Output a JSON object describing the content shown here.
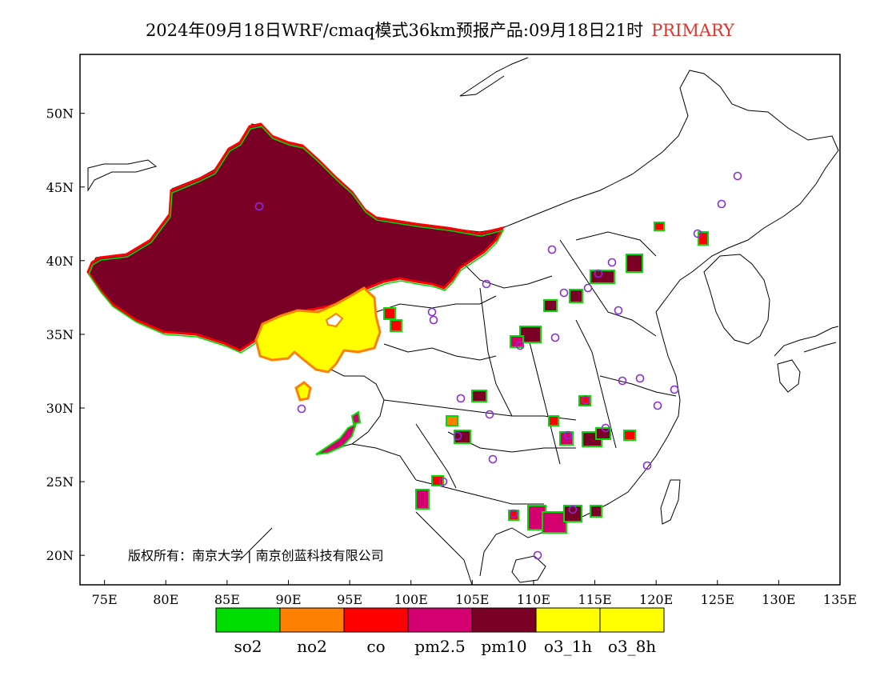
{
  "title": {
    "main": "2024年09月18日WRF/cmaq模式36km预报产品:09月18日21时",
    "tag": "PRIMARY",
    "tag_color": "#e0342b"
  },
  "axes": {
    "lon_ticks": [
      "75E",
      "80E",
      "85E",
      "90E",
      "95E",
      "100E",
      "105E",
      "110E",
      "115E",
      "120E",
      "125E",
      "130E",
      "135E"
    ],
    "lat_ticks": [
      "20N",
      "25N",
      "30N",
      "35N",
      "40N",
      "45N",
      "50N"
    ]
  },
  "legend": {
    "items": [
      {
        "label": "so2",
        "color": "#00dd00"
      },
      {
        "label": "no2",
        "color": "#ff8000"
      },
      {
        "label": "co",
        "color": "#ff0000"
      },
      {
        "label": "pm2.5",
        "color": "#d4006f"
      },
      {
        "label": "pm10",
        "color": "#7a0026"
      },
      {
        "label": "o3_1h",
        "color": "#ffff00"
      },
      {
        "label": "o3_8h",
        "color": "#ffff00"
      }
    ]
  },
  "copyright": "版权所有：南京大学 | 南京创蓝科技有限公司",
  "colors": {
    "pm10": "#7a0026",
    "pm25": "#d4006f",
    "co": "#ff0000",
    "no2": "#ff8000",
    "so2": "#00dd00",
    "o3": "#ffff00",
    "station_marker": "#8a2be2"
  }
}
